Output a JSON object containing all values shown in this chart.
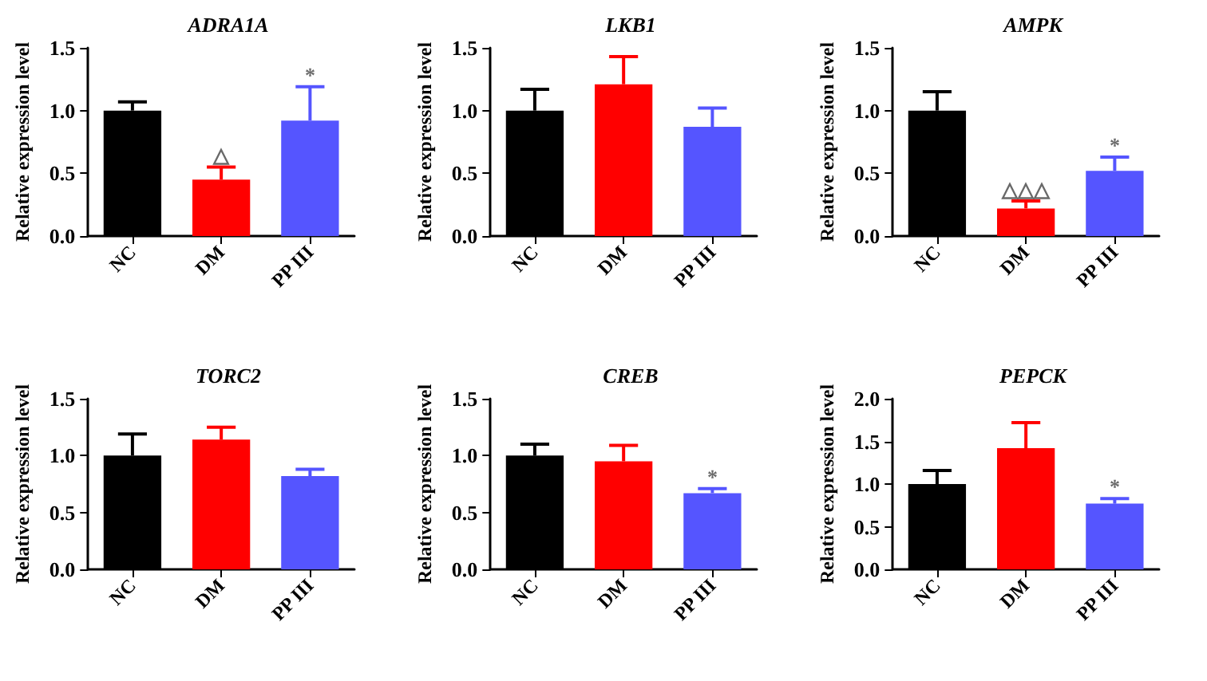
{
  "chart_data": [
    {
      "type": "bar",
      "title": "ADRA1A",
      "ylabel": "Relative expression level",
      "categories": [
        "NC",
        "DM",
        "PP III"
      ],
      "values": [
        1.0,
        0.45,
        0.92
      ],
      "colors": [
        "#000000",
        "#ff0000",
        "#5555ff"
      ],
      "errors": [
        [
          1.0,
          1.07
        ],
        [
          0.45,
          0.55
        ],
        [
          0.92,
          1.19
        ]
      ],
      "ylim": [
        0,
        1.5
      ],
      "yticks": [
        {
          "value": 0,
          "label": "0.0"
        },
        {
          "value": 0.5,
          "label": "0.5"
        },
        {
          "value": 1,
          "label": "1.0"
        },
        {
          "value": 1.5,
          "label": "1.5"
        }
      ],
      "annotations": [
        {
          "text": "△",
          "x": "DM",
          "y": 0.55
        },
        {
          "text": "*",
          "x": "PP III",
          "y": 1.19
        }
      ]
    },
    {
      "type": "bar",
      "title": "LKB1",
      "ylabel": "Relative expression level",
      "categories": [
        "NC",
        "DM",
        "PP III"
      ],
      "values": [
        1.0,
        1.21,
        0.87
      ],
      "colors": [
        "#000000",
        "#ff0000",
        "#5555ff"
      ],
      "errors": [
        [
          1.0,
          1.17
        ],
        [
          1.21,
          1.43
        ],
        [
          0.87,
          1.02
        ]
      ],
      "ylim": [
        0,
        1.5
      ],
      "yticks": [
        {
          "value": 0,
          "label": "0.0"
        },
        {
          "value": 0.5,
          "label": "0.5"
        },
        {
          "value": 1,
          "label": "1.0"
        },
        {
          "value": 1.5,
          "label": "1.5"
        }
      ]
    },
    {
      "type": "bar",
      "title": "AMPK",
      "ylabel": "Relative expression level",
      "categories": [
        "NC",
        "DM",
        "PP III"
      ],
      "values": [
        1.0,
        0.22,
        0.52
      ],
      "colors": [
        "#000000",
        "#ff0000",
        "#5555ff"
      ],
      "errors": [
        [
          1.0,
          1.15
        ],
        [
          0.22,
          0.28
        ],
        [
          0.52,
          0.63
        ]
      ],
      "ylim": [
        0,
        1.5
      ],
      "yticks": [
        {
          "value": 0,
          "label": "0.0"
        },
        {
          "value": 0.5,
          "label": "0.5"
        },
        {
          "value": 1,
          "label": "1.0"
        },
        {
          "value": 1.5,
          "label": "1.5"
        }
      ],
      "annotations": [
        {
          "text": "△△△",
          "x": "DM",
          "y": 0.28
        },
        {
          "text": "*",
          "x": "PP III",
          "y": 0.63
        }
      ]
    },
    {
      "type": "bar",
      "title": "TORC2",
      "ylabel": "Relative expression level",
      "categories": [
        "NC",
        "DM",
        "PP III"
      ],
      "values": [
        1.0,
        1.14,
        0.82
      ],
      "colors": [
        "#000000",
        "#ff0000",
        "#5555ff"
      ],
      "errors": [
        [
          1.0,
          1.19
        ],
        [
          1.14,
          1.25
        ],
        [
          0.82,
          0.88
        ]
      ],
      "ylim": [
        0,
        1.5
      ],
      "yticks": [
        {
          "value": 0,
          "label": "0.0"
        },
        {
          "value": 0.5,
          "label": "0.5"
        },
        {
          "value": 1,
          "label": "1.0"
        },
        {
          "value": 1.5,
          "label": "1.5"
        }
      ]
    },
    {
      "type": "bar",
      "title": "CREB",
      "ylabel": "Relative expression level",
      "categories": [
        "NC",
        "DM",
        "PP III"
      ],
      "values": [
        1.0,
        0.95,
        0.67
      ],
      "colors": [
        "#000000",
        "#ff0000",
        "#5555ff"
      ],
      "errors": [
        [
          1.0,
          1.1
        ],
        [
          0.95,
          1.09
        ],
        [
          0.67,
          0.71
        ]
      ],
      "ylim": [
        0,
        1.5
      ],
      "yticks": [
        {
          "value": 0,
          "label": "0.0"
        },
        {
          "value": 0.5,
          "label": "0.5"
        },
        {
          "value": 1,
          "label": "1.0"
        },
        {
          "value": 1.5,
          "label": "1.5"
        }
      ],
      "annotations": [
        {
          "text": "*",
          "x": "PP III",
          "y": 0.71
        }
      ]
    },
    {
      "type": "bar",
      "title": "PEPCK",
      "ylabel": "Relative expression level",
      "categories": [
        "NC",
        "DM",
        "PP III"
      ],
      "values": [
        1.0,
        1.42,
        0.77
      ],
      "colors": [
        "#000000",
        "#ff0000",
        "#5555ff"
      ],
      "errors": [
        [
          1.0,
          1.16
        ],
        [
          1.42,
          1.72
        ],
        [
          0.77,
          0.83
        ]
      ],
      "ylim": [
        0,
        2
      ],
      "yticks": [
        {
          "value": 0,
          "label": "0.0"
        },
        {
          "value": 0.5,
          "label": "0.5"
        },
        {
          "value": 1,
          "label": "1.0"
        },
        {
          "value": 1.5,
          "label": "1.5"
        },
        {
          "value": 2,
          "label": "2.0"
        }
      ],
      "annotations": [
        {
          "text": "*",
          "x": "PP III",
          "y": 0.83
        }
      ]
    }
  ]
}
